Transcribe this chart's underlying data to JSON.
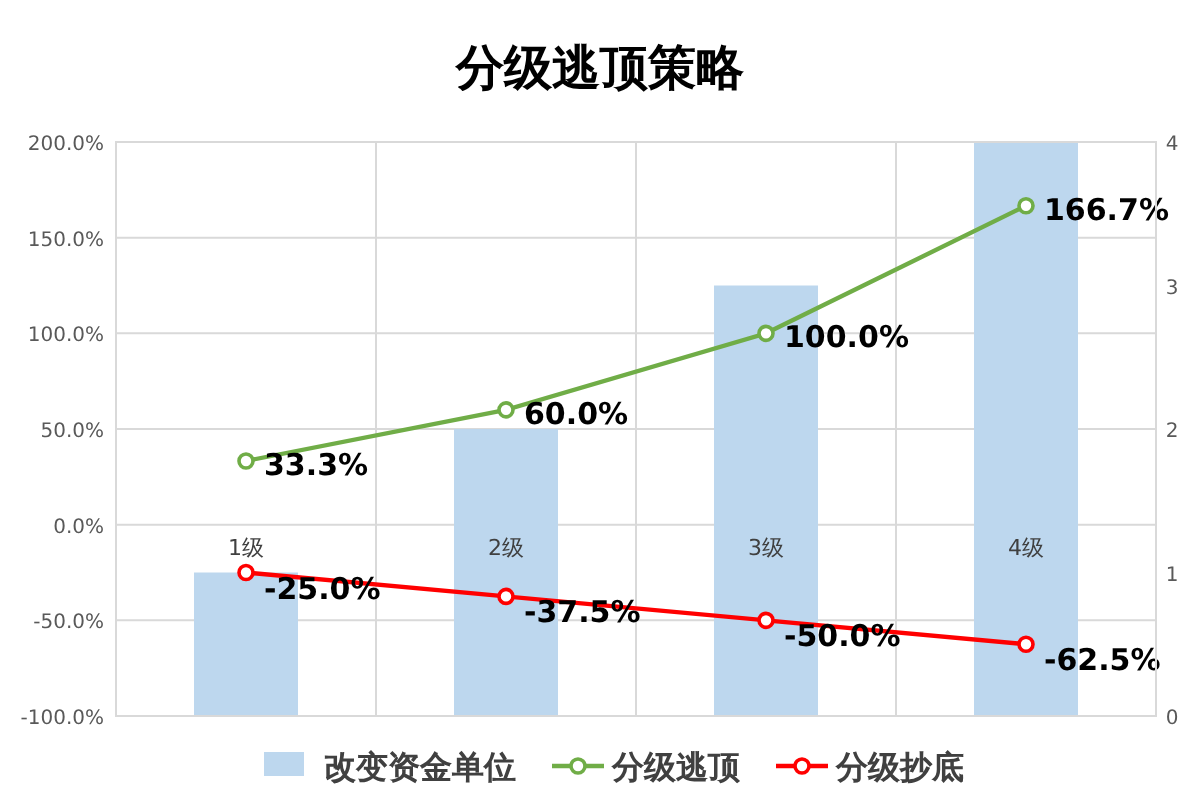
{
  "chart_data": {
    "type": "bar",
    "title": "分级逃顶策略",
    "categories": [
      "1级",
      "2级",
      "3级",
      "4级"
    ],
    "series": [
      {
        "name": "改变资金单位",
        "axis": "y2",
        "color": "#bdd7ee",
        "values": [
          1,
          2,
          3,
          4
        ]
      },
      {
        "name": "分级逃顶",
        "type": "line",
        "color": "#70ad47",
        "values": [
          33.3,
          60.0,
          100.0,
          166.7
        ],
        "value_labels": [
          "33.3%",
          "60.0%",
          "100.0%",
          "166.7%"
        ]
      },
      {
        "name": "分级抄底",
        "type": "line",
        "color": "#ff0000",
        "values": [
          -25.0,
          -37.5,
          -50.0,
          -62.5
        ],
        "value_labels": [
          "-25.0%",
          "-37.5%",
          "-50.0%",
          "-62.5%"
        ]
      }
    ],
    "ylim": [
      -100,
      200
    ],
    "yticks": [
      {
        "value": -100,
        "label": "-100.0%"
      },
      {
        "value": -50,
        "label": "-50.0%"
      },
      {
        "value": 0,
        "label": "0.0%"
      },
      {
        "value": 50,
        "label": "50.0%"
      },
      {
        "value": 100,
        "label": "100.0%"
      },
      {
        "value": 150,
        "label": "150.0%"
      },
      {
        "value": 200,
        "label": "200.0%"
      }
    ],
    "y2lim": [
      0,
      4
    ],
    "y2ticks": [
      0,
      1,
      2,
      3,
      4
    ],
    "grid": true,
    "legend": "bottom",
    "marker": "circle",
    "line_style": "solid"
  }
}
